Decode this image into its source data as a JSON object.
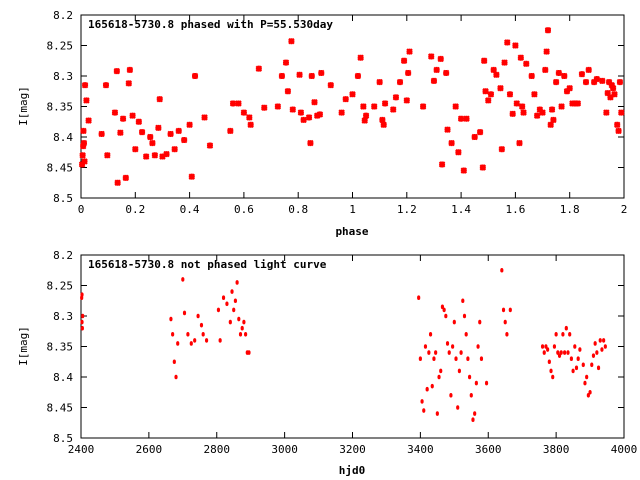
{
  "chart_data": [
    {
      "type": "scatter",
      "title": "165618-5730.8 phased with P=55.530day",
      "xlabel": "phase",
      "ylabel": "I[mag]",
      "xlim": [
        0,
        2
      ],
      "ylim": [
        8.5,
        8.2
      ],
      "y_inverted": true,
      "grid": false,
      "marker_color": "#ff0000",
      "marker": "star",
      "xticks": [
        "0",
        "0.2",
        "0.4",
        "0.6",
        "0.8",
        "1",
        "1.2",
        "1.4",
        "1.6",
        "1.8",
        "2"
      ],
      "yticks": [
        "8.2",
        "8.25",
        "8.3",
        "8.35",
        "8.4",
        "8.45",
        "8.5"
      ],
      "points": [
        [
          0.004,
          8.445
        ],
        [
          0.006,
          8.43
        ],
        [
          0.008,
          8.415
        ],
        [
          0.009,
          8.39
        ],
        [
          0.011,
          8.41
        ],
        [
          0.013,
          8.44
        ],
        [
          0.015,
          8.315
        ],
        [
          0.02,
          8.34
        ],
        [
          0.028,
          8.373
        ],
        [
          0.076,
          8.395
        ],
        [
          0.092,
          8.315
        ],
        [
          0.097,
          8.43
        ],
        [
          0.125,
          8.36
        ],
        [
          0.132,
          8.292
        ],
        [
          0.135,
          8.475
        ],
        [
          0.145,
          8.393
        ],
        [
          0.155,
          8.37
        ],
        [
          0.165,
          8.467
        ],
        [
          0.176,
          8.312
        ],
        [
          0.18,
          8.29
        ],
        [
          0.19,
          8.365
        ],
        [
          0.2,
          8.42
        ],
        [
          0.213,
          8.375
        ],
        [
          0.225,
          8.392
        ],
        [
          0.24,
          8.432
        ],
        [
          0.255,
          8.4
        ],
        [
          0.263,
          8.41
        ],
        [
          0.272,
          8.43
        ],
        [
          0.285,
          8.385
        ],
        [
          0.29,
          8.338
        ],
        [
          0.3,
          8.432
        ],
        [
          0.315,
          8.428
        ],
        [
          0.33,
          8.395
        ],
        [
          0.345,
          8.42
        ],
        [
          0.36,
          8.39
        ],
        [
          0.38,
          8.405
        ],
        [
          0.4,
          8.38
        ],
        [
          0.408,
          8.465
        ],
        [
          0.42,
          8.3
        ],
        [
          0.455,
          8.368
        ],
        [
          0.475,
          8.414
        ],
        [
          0.55,
          8.39
        ],
        [
          0.56,
          8.345
        ],
        [
          0.58,
          8.345
        ],
        [
          0.6,
          8.36
        ],
        [
          0.62,
          8.368
        ],
        [
          0.625,
          8.38
        ],
        [
          0.655,
          8.288
        ],
        [
          0.675,
          8.352
        ],
        [
          0.725,
          8.35
        ],
        [
          0.74,
          8.3
        ],
        [
          0.755,
          8.278
        ],
        [
          0.762,
          8.325
        ],
        [
          0.775,
          8.243
        ],
        [
          0.78,
          8.355
        ],
        [
          0.805,
          8.298
        ],
        [
          0.81,
          8.36
        ],
        [
          0.82,
          8.372
        ],
        [
          0.84,
          8.368
        ],
        [
          0.845,
          8.41
        ],
        [
          0.85,
          8.3
        ],
        [
          0.86,
          8.343
        ],
        [
          0.87,
          8.365
        ],
        [
          0.88,
          8.363
        ],
        [
          0.885,
          8.295
        ],
        [
          0.92,
          8.315
        ],
        [
          0.96,
          8.36
        ],
        [
          0.975,
          8.338
        ],
        [
          1.0,
          8.33
        ],
        [
          1.02,
          8.3
        ],
        [
          1.03,
          8.27
        ],
        [
          1.04,
          8.35
        ],
        [
          1.045,
          8.373
        ],
        [
          1.05,
          8.365
        ],
        [
          1.08,
          8.35
        ],
        [
          1.1,
          8.31
        ],
        [
          1.11,
          8.372
        ],
        [
          1.115,
          8.38
        ],
        [
          1.12,
          8.345
        ],
        [
          1.15,
          8.355
        ],
        [
          1.16,
          8.335
        ],
        [
          1.175,
          8.31
        ],
        [
          1.19,
          8.275
        ],
        [
          1.2,
          8.34
        ],
        [
          1.205,
          8.295
        ],
        [
          1.21,
          8.26
        ],
        [
          1.26,
          8.35
        ],
        [
          1.29,
          8.268
        ],
        [
          1.3,
          8.308
        ],
        [
          1.31,
          8.29
        ],
        [
          1.325,
          8.272
        ],
        [
          1.33,
          8.445
        ],
        [
          1.345,
          8.295
        ],
        [
          1.35,
          8.388
        ],
        [
          1.365,
          8.41
        ],
        [
          1.38,
          8.35
        ],
        [
          1.39,
          8.425
        ],
        [
          1.4,
          8.37
        ],
        [
          1.41,
          8.455
        ],
        [
          1.42,
          8.37
        ],
        [
          1.45,
          8.4
        ],
        [
          1.47,
          8.392
        ],
        [
          1.48,
          8.45
        ],
        [
          1.485,
          8.275
        ],
        [
          1.49,
          8.325
        ],
        [
          1.5,
          8.34
        ],
        [
          1.51,
          8.33
        ],
        [
          1.52,
          8.29
        ],
        [
          1.53,
          8.298
        ],
        [
          1.545,
          8.32
        ],
        [
          1.55,
          8.42
        ],
        [
          1.56,
          8.278
        ],
        [
          1.57,
          8.245
        ],
        [
          1.58,
          8.33
        ],
        [
          1.59,
          8.362
        ],
        [
          1.6,
          8.25
        ],
        [
          1.605,
          8.345
        ],
        [
          1.615,
          8.41
        ],
        [
          1.62,
          8.27
        ],
        [
          1.625,
          8.35
        ],
        [
          1.63,
          8.36
        ],
        [
          1.64,
          8.28
        ],
        [
          1.66,
          8.3
        ],
        [
          1.67,
          8.33
        ],
        [
          1.68,
          8.365
        ],
        [
          1.69,
          8.355
        ],
        [
          1.7,
          8.36
        ],
        [
          1.71,
          8.29
        ],
        [
          1.715,
          8.26
        ],
        [
          1.72,
          8.225
        ],
        [
          1.73,
          8.38
        ],
        [
          1.735,
          8.355
        ],
        [
          1.74,
          8.372
        ],
        [
          1.75,
          8.31
        ],
        [
          1.76,
          8.295
        ],
        [
          1.77,
          8.35
        ],
        [
          1.78,
          8.3
        ],
        [
          1.79,
          8.325
        ],
        [
          1.8,
          8.32
        ],
        [
          1.81,
          8.345
        ],
        [
          1.82,
          8.345
        ],
        [
          1.83,
          8.345
        ],
        [
          1.845,
          8.297
        ],
        [
          1.86,
          8.31
        ],
        [
          1.87,
          8.29
        ],
        [
          1.89,
          8.31
        ],
        [
          1.9,
          8.305
        ],
        [
          1.92,
          8.308
        ],
        [
          1.935,
          8.36
        ],
        [
          1.94,
          8.328
        ],
        [
          1.945,
          8.31
        ],
        [
          1.95,
          8.335
        ],
        [
          1.955,
          8.315
        ],
        [
          1.96,
          8.32
        ],
        [
          1.965,
          8.33
        ],
        [
          1.975,
          8.38
        ],
        [
          1.98,
          8.39
        ],
        [
          1.985,
          8.31
        ],
        [
          1.99,
          8.36
        ]
      ]
    },
    {
      "type": "scatter",
      "title": "165618-5730.8 not phased light curve",
      "xlabel": "hjd0",
      "ylabel": "I[mag]",
      "xlim": [
        2400,
        4000
      ],
      "ylim": [
        8.5,
        8.2
      ],
      "y_inverted": true,
      "grid": false,
      "marker_color": "#ff0000",
      "marker": "dot",
      "xticks": [
        "2400",
        "2600",
        "2800",
        "3000",
        "3200",
        "3400",
        "3600",
        "3800",
        "4000"
      ],
      "yticks": [
        "8.2",
        "8.25",
        "8.3",
        "8.35",
        "8.4",
        "8.45",
        "8.5"
      ],
      "points": [
        [
          2402,
          8.27
        ],
        [
          2403,
          8.265
        ],
        [
          2403,
          8.31
        ],
        [
          2404,
          8.32
        ],
        [
          2405,
          8.3
        ],
        [
          2665,
          8.305
        ],
        [
          2670,
          8.33
        ],
        [
          2675,
          8.375
        ],
        [
          2680,
          8.4
        ],
        [
          2685,
          8.345
        ],
        [
          2700,
          8.24
        ],
        [
          2705,
          8.295
        ],
        [
          2715,
          8.33
        ],
        [
          2725,
          8.345
        ],
        [
          2735,
          8.34
        ],
        [
          2745,
          8.3
        ],
        [
          2755,
          8.315
        ],
        [
          2760,
          8.33
        ],
        [
          2770,
          8.34
        ],
        [
          2805,
          8.29
        ],
        [
          2810,
          8.34
        ],
        [
          2820,
          8.27
        ],
        [
          2830,
          8.28
        ],
        [
          2840,
          8.31
        ],
        [
          2845,
          8.26
        ],
        [
          2850,
          8.29
        ],
        [
          2855,
          8.275
        ],
        [
          2860,
          8.245
        ],
        [
          2865,
          8.305
        ],
        [
          2870,
          8.33
        ],
        [
          2875,
          8.32
        ],
        [
          2880,
          8.31
        ],
        [
          2885,
          8.33
        ],
        [
          2890,
          8.36
        ],
        [
          2895,
          8.36
        ],
        [
          3395,
          8.27
        ],
        [
          3400,
          8.37
        ],
        [
          3405,
          8.44
        ],
        [
          3410,
          8.455
        ],
        [
          3415,
          8.35
        ],
        [
          3420,
          8.42
        ],
        [
          3425,
          8.36
        ],
        [
          3430,
          8.33
        ],
        [
          3435,
          8.415
        ],
        [
          3440,
          8.37
        ],
        [
          3445,
          8.36
        ],
        [
          3450,
          8.46
        ],
        [
          3455,
          8.4
        ],
        [
          3460,
          8.39
        ],
        [
          3465,
          8.285
        ],
        [
          3470,
          8.29
        ],
        [
          3475,
          8.3
        ],
        [
          3480,
          8.345
        ],
        [
          3485,
          8.36
        ],
        [
          3490,
          8.43
        ],
        [
          3495,
          8.35
        ],
        [
          3500,
          8.31
        ],
        [
          3505,
          8.37
        ],
        [
          3510,
          8.45
        ],
        [
          3515,
          8.39
        ],
        [
          3520,
          8.36
        ],
        [
          3525,
          8.275
        ],
        [
          3530,
          8.3
        ],
        [
          3535,
          8.33
        ],
        [
          3540,
          8.37
        ],
        [
          3545,
          8.4
        ],
        [
          3550,
          8.43
        ],
        [
          3555,
          8.47
        ],
        [
          3560,
          8.46
        ],
        [
          3565,
          8.41
        ],
        [
          3570,
          8.35
        ],
        [
          3575,
          8.31
        ],
        [
          3580,
          8.37
        ],
        [
          3595,
          8.41
        ],
        [
          3640,
          8.225
        ],
        [
          3645,
          8.29
        ],
        [
          3650,
          8.31
        ],
        [
          3655,
          8.33
        ],
        [
          3665,
          8.29
        ],
        [
          3760,
          8.35
        ],
        [
          3765,
          8.36
        ],
        [
          3770,
          8.35
        ],
        [
          3775,
          8.355
        ],
        [
          3780,
          8.375
        ],
        [
          3785,
          8.39
        ],
        [
          3790,
          8.4
        ],
        [
          3795,
          8.35
        ],
        [
          3800,
          8.33
        ],
        [
          3805,
          8.36
        ],
        [
          3810,
          8.365
        ],
        [
          3815,
          8.36
        ],
        [
          3820,
          8.33
        ],
        [
          3825,
          8.36
        ],
        [
          3830,
          8.32
        ],
        [
          3835,
          8.36
        ],
        [
          3840,
          8.33
        ],
        [
          3845,
          8.37
        ],
        [
          3850,
          8.39
        ],
        [
          3855,
          8.35
        ],
        [
          3860,
          8.385
        ],
        [
          3865,
          8.37
        ],
        [
          3870,
          8.355
        ],
        [
          3880,
          8.38
        ],
        [
          3885,
          8.41
        ],
        [
          3890,
          8.4
        ],
        [
          3895,
          8.43
        ],
        [
          3900,
          8.425
        ],
        [
          3905,
          8.38
        ],
        [
          3910,
          8.365
        ],
        [
          3915,
          8.345
        ],
        [
          3920,
          8.36
        ],
        [
          3925,
          8.385
        ],
        [
          3930,
          8.34
        ],
        [
          3935,
          8.355
        ],
        [
          3940,
          8.34
        ],
        [
          3945,
          8.35
        ]
      ]
    }
  ]
}
